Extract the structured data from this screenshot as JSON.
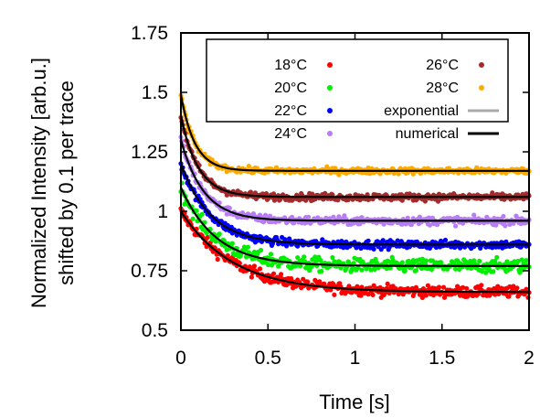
{
  "chart_data": {
    "type": "scatter",
    "title": "",
    "xlabel": "Time [s]",
    "ylabel_lines": [
      "Normalized Intensity [arb.u.]",
      "shifted by 0.1 per trace"
    ],
    "xlim": [
      0,
      2
    ],
    "ylim": [
      0.5,
      1.75
    ],
    "x_ticks": [
      "0",
      "0.5",
      "1",
      "1.5",
      "2"
    ],
    "x_tick_values": [
      0,
      0.5,
      1,
      1.5,
      2
    ],
    "y_ticks": [
      "0.5",
      "0.75",
      "1",
      "1.25",
      "1.5",
      "1.75"
    ],
    "y_tick_values": [
      0.5,
      0.75,
      1,
      1.25,
      1.5,
      1.75
    ],
    "grid": false,
    "legend_position": "top",
    "series": [
      {
        "name": "18°C",
        "color": "#ff0000",
        "start": 1.0,
        "plateau": 0.66,
        "tau": 0.3,
        "noise": 0.022
      },
      {
        "name": "20°C",
        "color": "#00ee00",
        "start": 1.1,
        "plateau": 0.77,
        "tau": 0.2,
        "noise": 0.028
      },
      {
        "name": "22°C",
        "color": "#0000ff",
        "start": 1.2,
        "plateau": 0.86,
        "tau": 0.17,
        "noise": 0.016
      },
      {
        "name": "24°C",
        "color": "#b77cf6",
        "start": 1.3,
        "plateau": 0.96,
        "tau": 0.13,
        "noise": 0.016
      },
      {
        "name": "26°C",
        "color": "#a52a2a",
        "start": 1.4,
        "plateau": 1.06,
        "tau": 0.1,
        "noise": 0.014
      },
      {
        "name": "28°C",
        "color": "#ffaa00",
        "start": 1.49,
        "plateau": 1.17,
        "tau": 0.08,
        "noise": 0.012
      }
    ],
    "fit_lines": [
      {
        "name": "exponential",
        "color": "#aaaaaa"
      },
      {
        "name": "numerical",
        "color": "#000000"
      }
    ]
  }
}
